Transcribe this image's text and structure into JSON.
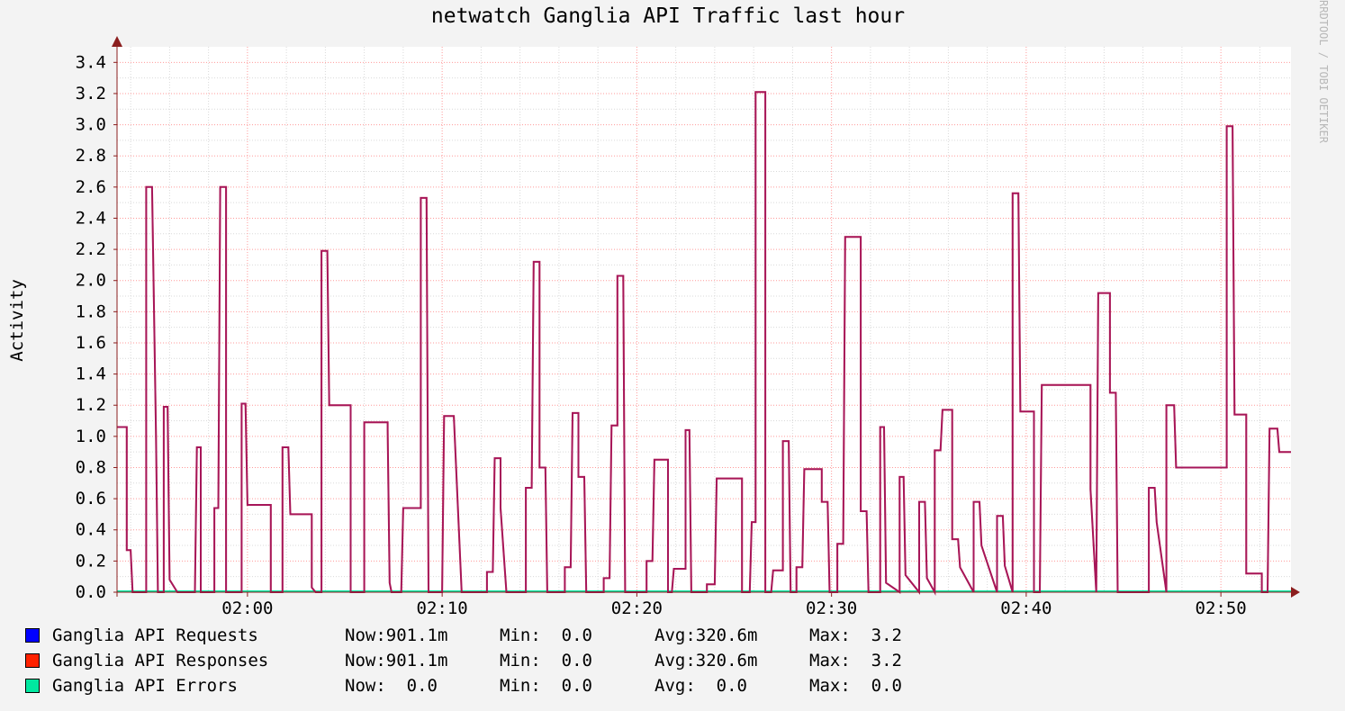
{
  "chart_data": {
    "type": "line",
    "title": "netwatch Ganglia API Traffic last hour",
    "ylabel": "Activity",
    "watermark": "RRDTOOL / TOBI OETIKER",
    "ylim": [
      0,
      3.5
    ],
    "yticks": [
      "0.0",
      "0.2",
      "0.4",
      "0.6",
      "0.8",
      "1.0",
      "1.2",
      "1.4",
      "1.6",
      "1.8",
      "2.0",
      "2.2",
      "2.4",
      "2.6",
      "2.8",
      "3.0",
      "3.2",
      "3.4"
    ],
    "xlim_minutes": [
      -6.7,
      53.6
    ],
    "xticks": [
      {
        "label": "02:00",
        "minute": 0
      },
      {
        "label": "02:10",
        "minute": 10
      },
      {
        "label": "02:20",
        "minute": 20
      },
      {
        "label": "02:30",
        "minute": 30
      },
      {
        "label": "02:40",
        "minute": 40
      },
      {
        "label": "02:50",
        "minute": 50
      }
    ],
    "grid": true,
    "colors": {
      "background": "#f3f3f3",
      "canvas": "#ffffff",
      "major_grid": "#ff9a9a",
      "minor_grid": "#d9d9d9",
      "axis": "#8b1e1e",
      "requests": "#0000ff",
      "responses": "#ff2200",
      "errors": "#00e8a0",
      "overlap": "#b05080"
    },
    "x": [
      -6.7,
      -6.2,
      -6.2,
      -6.0,
      -5.9,
      -5.7,
      -5.6,
      -5.2,
      -5.2,
      -4.9,
      -4.7,
      -4.6,
      -4.6,
      -4.3,
      -4.3,
      -4.1,
      -4.0,
      -3.6,
      -3.6,
      -2.7,
      -2.6,
      -2.4,
      -2.4,
      -2.2,
      -2.1,
      -1.7,
      -1.7,
      -1.5,
      -1.4,
      -1.1,
      -1.1,
      -0.9,
      -0.8,
      -0.3,
      -0.3,
      -0.1,
      0.0,
      1.2,
      1.2,
      1.4,
      1.5,
      1.8,
      1.8,
      2.1,
      2.2,
      3.3,
      3.3,
      3.5,
      3.6,
      3.8,
      3.8,
      4.1,
      4.2,
      5.3,
      5.3,
      5.6,
      5.7,
      6.0,
      6.0,
      7.2,
      7.2,
      7.3,
      7.4,
      7.7,
      7.7,
      7.9,
      8.0,
      8.9,
      8.9,
      9.2,
      9.3,
      9.5,
      9.6,
      10.0,
      10.1,
      10.6,
      10.6,
      11.0,
      11.1,
      12.3,
      12.3,
      12.6,
      12.7,
      13.0,
      13.0,
      13.3,
      13.4,
      14.3,
      14.3,
      14.6,
      14.7,
      15.0,
      15.0,
      15.3,
      15.4,
      16.3,
      16.3,
      16.6,
      16.7,
      17.0,
      17.0,
      17.3,
      17.4,
      18.3,
      18.3,
      18.6,
      18.7,
      19.0,
      19.0,
      19.3,
      19.4,
      20.5,
      20.5,
      20.8,
      20.9,
      21.6,
      21.6,
      21.8,
      21.9,
      22.5,
      22.5,
      22.7,
      22.8,
      23.6,
      23.6,
      24.0,
      24.1,
      25.4,
      25.4,
      25.8,
      25.9,
      26.1,
      26.1,
      26.6,
      26.6,
      26.9,
      27.0,
      27.5,
      27.5,
      27.8,
      27.9,
      28.2,
      28.2,
      28.5,
      28.6,
      29.5,
      29.5,
      29.8,
      29.9,
      30.3,
      30.3,
      30.6,
      30.7,
      31.5,
      31.5,
      31.8,
      31.9,
      32.5,
      32.5,
      32.7,
      32.8,
      33.5,
      33.5,
      33.7,
      33.8,
      34.5,
      34.5,
      34.8,
      34.9,
      35.3,
      35.3,
      35.6,
      35.7,
      36.2,
      36.2,
      36.5,
      36.6,
      37.3,
      37.3,
      37.6,
      37.7,
      38.5,
      38.5,
      38.8,
      38.9,
      39.3,
      39.3,
      39.6,
      39.7,
      40.4,
      40.4,
      40.7,
      40.8,
      43.3,
      43.3,
      43.6,
      43.7,
      44.3,
      44.3,
      44.6,
      44.7,
      46.3,
      46.3,
      46.6,
      46.7,
      47.2,
      47.2,
      47.6,
      47.7,
      50.3,
      50.3,
      50.6,
      50.7,
      51.3,
      51.3,
      52.1,
      52.1,
      52.4,
      52.5,
      52.9,
      53.0,
      53.6
    ],
    "series": [
      {
        "name": "Ganglia API Requests",
        "color": "#0000ff",
        "values": [
          1.06,
          1.06,
          0.27,
          0.27,
          0.0,
          0.0,
          0.0,
          0.0,
          2.6,
          2.6,
          1.0,
          0.0,
          0.0,
          0.0,
          1.19,
          1.19,
          0.08,
          0.0,
          0.0,
          0.0,
          0.93,
          0.93,
          0.0,
          0.0,
          0.0,
          0.0,
          0.54,
          0.54,
          2.6,
          2.6,
          0.0,
          0.0,
          0.0,
          0.0,
          1.21,
          1.21,
          0.56,
          0.56,
          0.0,
          0.0,
          0.0,
          0.0,
          0.93,
          0.93,
          0.5,
          0.5,
          0.03,
          0.0,
          0.0,
          0.0,
          2.19,
          2.19,
          1.2,
          1.2,
          0.0,
          0.0,
          0.0,
          0.0,
          1.09,
          1.09,
          1.04,
          0.06,
          0.0,
          0.0,
          0.0,
          0.0,
          0.54,
          0.54,
          2.53,
          2.53,
          0.0,
          0.0,
          0.0,
          0.0,
          1.13,
          1.13,
          1.13,
          0.0,
          0.0,
          0.0,
          0.13,
          0.13,
          0.86,
          0.86,
          0.54,
          0.0,
          0.0,
          0.0,
          0.67,
          0.67,
          2.12,
          2.12,
          0.8,
          0.8,
          0.0,
          0.0,
          0.16,
          0.16,
          1.15,
          1.15,
          0.74,
          0.74,
          0.0,
          0.0,
          0.09,
          0.09,
          1.07,
          1.07,
          2.03,
          2.03,
          0.0,
          0.0,
          0.2,
          0.2,
          0.85,
          0.85,
          0.0,
          0.0,
          0.15,
          0.15,
          1.04,
          1.04,
          0.0,
          0.0,
          0.05,
          0.05,
          0.73,
          0.73,
          0.0,
          0.0,
          0.45,
          0.45,
          3.21,
          3.21,
          0.0,
          0.0,
          0.14,
          0.14,
          0.97,
          0.97,
          0.0,
          0.0,
          0.16,
          0.16,
          0.79,
          0.79,
          0.58,
          0.58,
          0.0,
          0.0,
          0.31,
          0.31,
          2.28,
          2.28,
          0.52,
          0.52,
          0.0,
          0.0,
          1.06,
          1.06,
          0.06,
          0.0,
          0.74,
          0.74,
          0.11,
          0.0,
          0.58,
          0.58,
          0.09,
          0.0,
          0.91,
          0.91,
          1.17,
          1.17,
          0.34,
          0.34,
          0.16,
          0.0,
          0.58,
          0.58,
          0.3,
          0.0,
          0.49,
          0.49,
          0.17,
          0.0,
          2.56,
          2.56,
          1.16,
          1.16,
          0.0,
          0.0,
          1.33,
          1.33,
          0.66,
          0.0,
          1.92,
          1.92,
          1.28,
          1.28,
          0.0,
          0.0,
          0.67,
          0.67,
          0.45,
          0.0,
          1.2,
          1.2,
          0.8,
          0.8,
          2.99,
          2.99,
          1.14,
          1.14,
          0.12,
          0.12,
          0.0,
          0.0,
          1.05,
          1.05,
          0.9,
          0.9
        ]
      },
      {
        "name": "Ganglia API Responses",
        "color": "#ff2200",
        "values": [
          1.06,
          1.06,
          0.27,
          0.27,
          0.0,
          0.0,
          0.0,
          0.0,
          2.6,
          2.6,
          1.0,
          0.0,
          0.0,
          0.0,
          1.19,
          1.19,
          0.08,
          0.0,
          0.0,
          0.0,
          0.93,
          0.93,
          0.0,
          0.0,
          0.0,
          0.0,
          0.54,
          0.54,
          2.6,
          2.6,
          0.0,
          0.0,
          0.0,
          0.0,
          1.21,
          1.21,
          0.56,
          0.56,
          0.0,
          0.0,
          0.0,
          0.0,
          0.93,
          0.93,
          0.5,
          0.5,
          0.03,
          0.0,
          0.0,
          0.0,
          2.19,
          2.19,
          1.2,
          1.2,
          0.0,
          0.0,
          0.0,
          0.0,
          1.09,
          1.09,
          1.04,
          0.06,
          0.0,
          0.0,
          0.0,
          0.0,
          0.54,
          0.54,
          2.53,
          2.53,
          0.0,
          0.0,
          0.0,
          0.0,
          1.13,
          1.13,
          1.13,
          0.0,
          0.0,
          0.0,
          0.13,
          0.13,
          0.86,
          0.86,
          0.54,
          0.0,
          0.0,
          0.0,
          0.67,
          0.67,
          2.12,
          2.12,
          0.8,
          0.8,
          0.0,
          0.0,
          0.16,
          0.16,
          1.15,
          1.15,
          0.74,
          0.74,
          0.0,
          0.0,
          0.09,
          0.09,
          1.07,
          1.07,
          2.03,
          2.03,
          0.0,
          0.0,
          0.2,
          0.2,
          0.85,
          0.85,
          0.0,
          0.0,
          0.15,
          0.15,
          1.04,
          1.04,
          0.0,
          0.0,
          0.05,
          0.05,
          0.73,
          0.73,
          0.0,
          0.0,
          0.45,
          0.45,
          3.21,
          3.21,
          0.0,
          0.0,
          0.14,
          0.14,
          0.97,
          0.97,
          0.0,
          0.0,
          0.16,
          0.16,
          0.79,
          0.79,
          0.58,
          0.58,
          0.0,
          0.0,
          0.31,
          0.31,
          2.28,
          2.28,
          0.52,
          0.52,
          0.0,
          0.0,
          1.06,
          1.06,
          0.06,
          0.0,
          0.74,
          0.74,
          0.11,
          0.0,
          0.58,
          0.58,
          0.09,
          0.0,
          0.91,
          0.91,
          1.17,
          1.17,
          0.34,
          0.34,
          0.16,
          0.0,
          0.58,
          0.58,
          0.3,
          0.0,
          0.49,
          0.49,
          0.17,
          0.0,
          2.56,
          2.56,
          1.16,
          1.16,
          0.0,
          0.0,
          1.33,
          1.33,
          0.66,
          0.0,
          1.92,
          1.92,
          1.28,
          1.28,
          0.0,
          0.0,
          0.67,
          0.67,
          0.45,
          0.0,
          1.2,
          1.2,
          0.8,
          0.8,
          2.99,
          2.99,
          1.14,
          1.14,
          0.12,
          0.12,
          0.0,
          0.0,
          1.05,
          1.05,
          0.9,
          0.9
        ]
      },
      {
        "name": "Ganglia API Errors",
        "color": "#00e8a0",
        "constant": 0.0
      }
    ],
    "legend": [
      {
        "label": "Ganglia API Requests",
        "color": "#0000ff",
        "now": "Now:901.1m",
        "min": "Min:  0.0",
        "avg": "Avg:320.6m",
        "max": "Max:  3.2"
      },
      {
        "label": "Ganglia API Responses",
        "color": "#ff2200",
        "now": "Now:901.1m",
        "min": "Min:  0.0",
        "avg": "Avg:320.6m",
        "max": "Max:  3.2"
      },
      {
        "label": "Ganglia API Errors",
        "color": "#00e8a0",
        "now": "Now:  0.0",
        "min": "Min:  0.0",
        "avg": "Avg:  0.0",
        "max": "Max:  0.0"
      }
    ],
    "legend_position": "bottom"
  }
}
